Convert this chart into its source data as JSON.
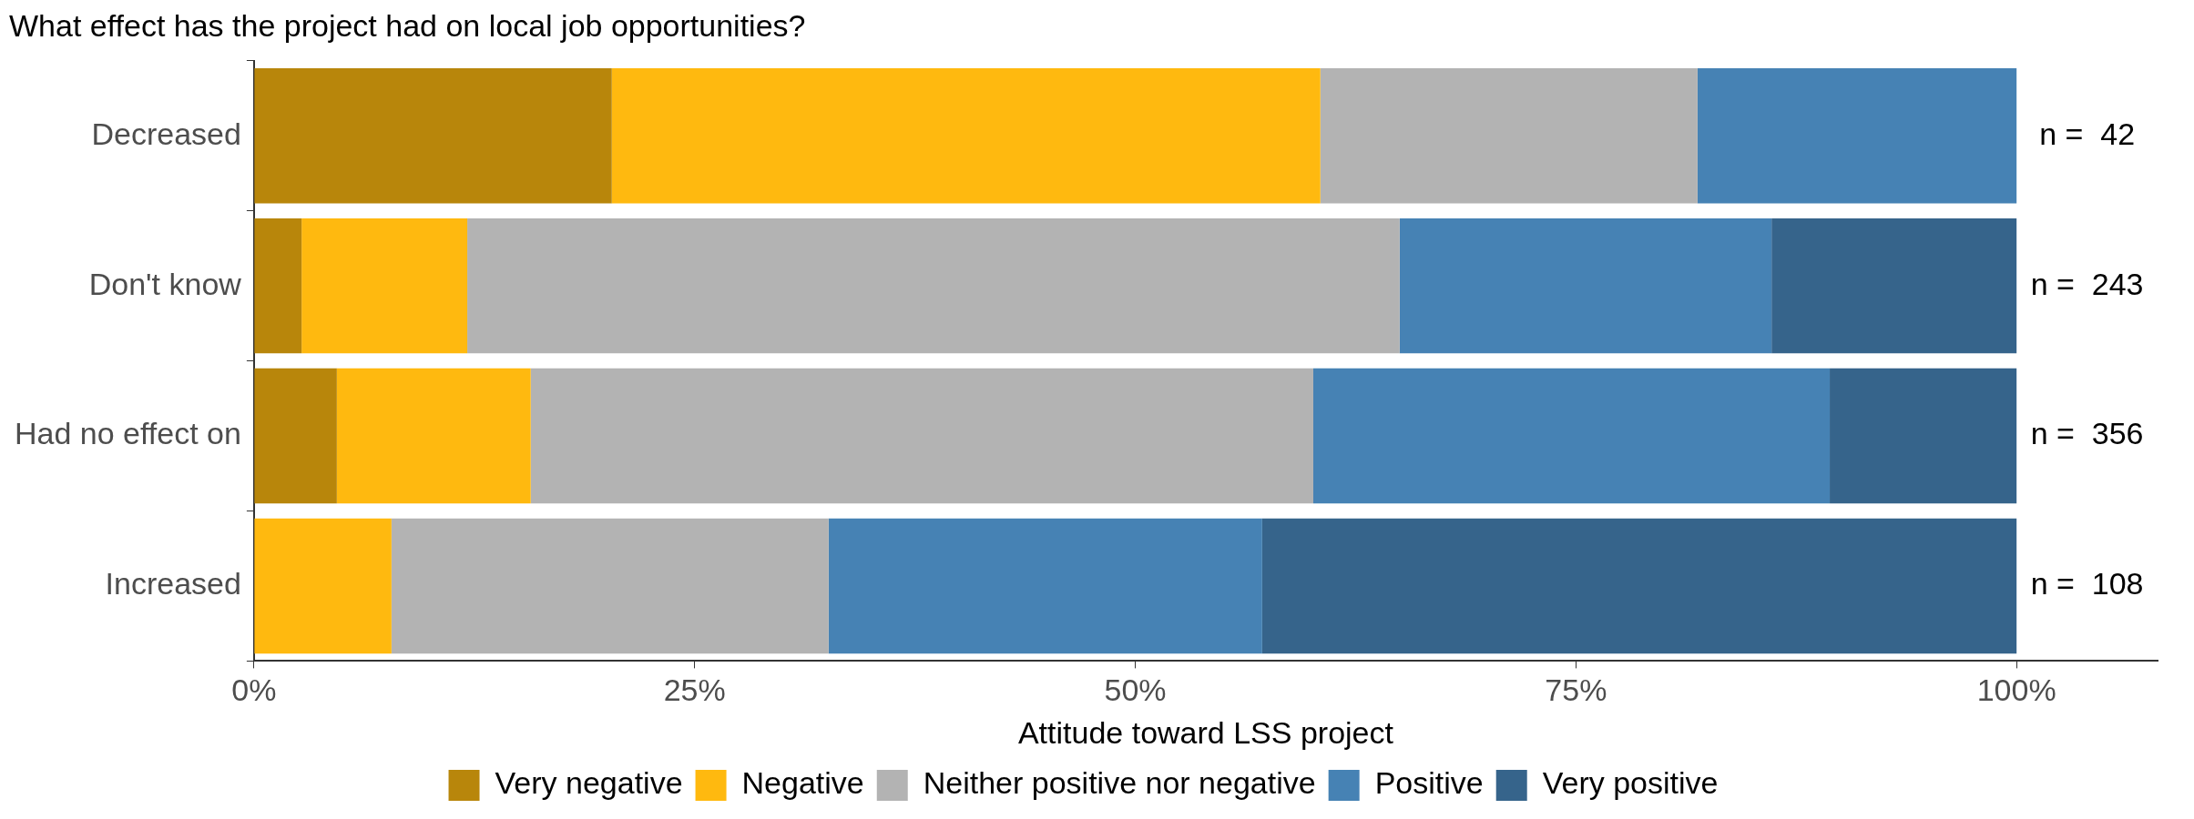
{
  "chart_data": {
    "type": "bar",
    "orientation": "horizontal",
    "stacked": true,
    "title": "What effect has the project had on local job opportunities?",
    "xlabel": "Attitude toward LSS project",
    "categories": [
      "Decreased",
      "Don't know",
      "Had no effect on",
      "Increased"
    ],
    "series": [
      {
        "name": "Very negative",
        "color": "#b8860b",
        "values": [
          20.3,
          2.7,
          4.7,
          0
        ]
      },
      {
        "name": "Negative",
        "color": "#ffb90f",
        "values": [
          40.2,
          9.4,
          11.0,
          7.8
        ]
      },
      {
        "name": "Neither positive nor negative",
        "color": "#b3b3b3",
        "values": [
          21.4,
          52.9,
          44.4,
          24.8
        ]
      },
      {
        "name": "Positive",
        "color": "#4682b4",
        "values": [
          18.1,
          21.1,
          29.3,
          24.6
        ]
      },
      {
        "name": "Very positive",
        "color": "#36648b",
        "values": [
          0,
          13.9,
          10.6,
          42.8
        ]
      }
    ],
    "xlim": [
      0,
      108
    ],
    "xticks": [
      {
        "value": 0,
        "label": "0%"
      },
      {
        "value": 25,
        "label": "25%"
      },
      {
        "value": 50,
        "label": "50%"
      },
      {
        "value": 75,
        "label": "75%"
      },
      {
        "value": 100,
        "label": "100%"
      }
    ],
    "annotations": [
      "n =  42",
      "n =  243",
      "n =  356",
      "n =  108"
    ],
    "grid": false,
    "legend": "bottom"
  }
}
